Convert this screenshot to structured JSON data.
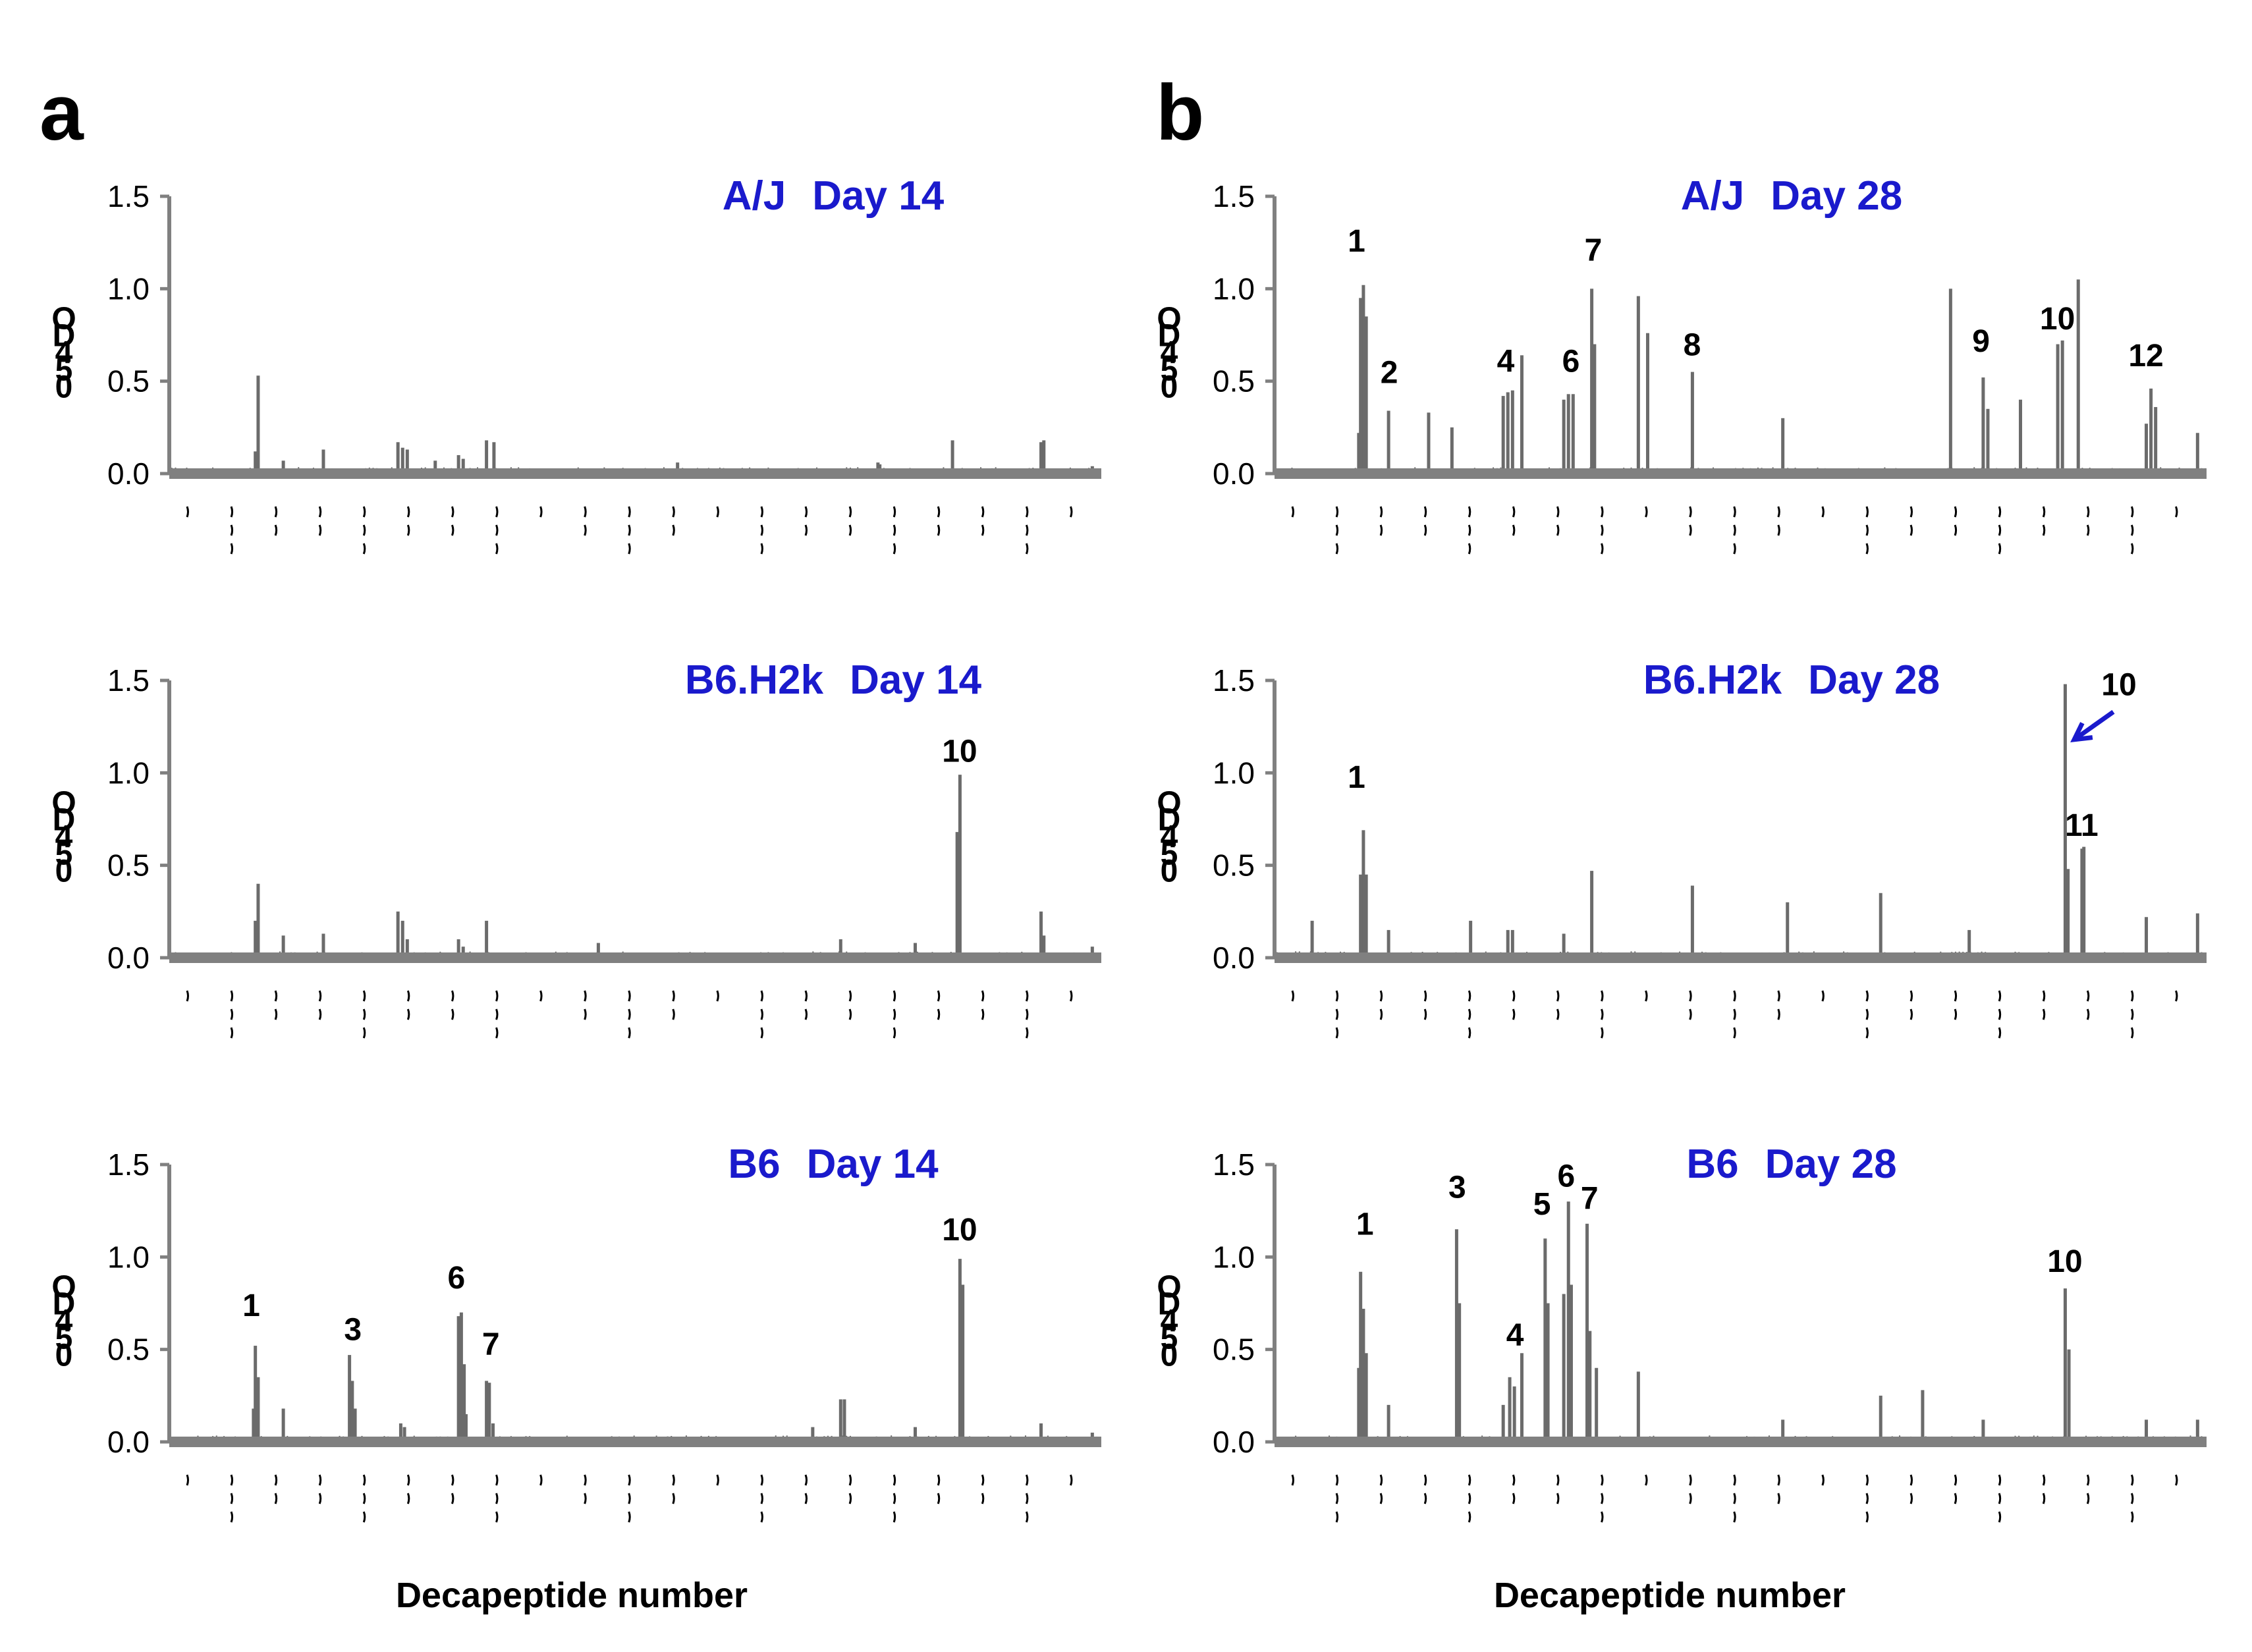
{
  "colors": {
    "title": "#1a1acc",
    "bar": "#6b6b6b",
    "axis": "#808080",
    "arrow": "#1a1acc",
    "text": "#000000"
  },
  "panels": [
    {
      "letter": "a",
      "xlabel": "Decapeptide number"
    },
    {
      "letter": "b",
      "xlabel": "Decapeptide number"
    }
  ],
  "chart_data": [
    {
      "type": "bar",
      "id": "aj-d14",
      "panel": "a",
      "row": 0,
      "title_strain": "A/J",
      "title_day": "Day 14",
      "ylabel": "OD 450",
      "ylabel_display": "OD 450",
      "ylim": [
        0,
        1.5
      ],
      "yticks": [
        "0.0",
        "0.5",
        "1.0",
        "1.5"
      ],
      "xlabel": "Decapeptide number",
      "xrange": [
        0,
        1000
      ],
      "bars": [
        [
          95,
          0.53
        ],
        [
          92,
          0.12
        ],
        [
          122,
          0.07
        ],
        [
          165,
          0.13
        ],
        [
          245,
          0.17
        ],
        [
          250,
          0.14
        ],
        [
          255,
          0.13
        ],
        [
          285,
          0.07
        ],
        [
          310,
          0.1
        ],
        [
          315,
          0.08
        ],
        [
          340,
          0.18
        ],
        [
          348,
          0.17
        ],
        [
          545,
          0.06
        ],
        [
          760,
          0.06
        ],
        [
          762,
          0.05
        ],
        [
          840,
          0.18
        ],
        [
          935,
          0.17
        ],
        [
          938,
          0.18
        ],
        [
          990,
          0.04
        ]
      ],
      "annotations": []
    },
    {
      "type": "bar",
      "id": "b6h2k-d14",
      "panel": "a",
      "row": 1,
      "title_strain": "B6.H2k",
      "title_day": "Day 14",
      "ylabel": "OD 450",
      "ylabel_display": "OD 450",
      "ylim": [
        0,
        1.5
      ],
      "yticks": [
        "0.0",
        "0.5",
        "1.0",
        "1.5"
      ],
      "xlabel": "Decapeptide number",
      "xrange": [
        0,
        1000
      ],
      "bars": [
        [
          95,
          0.4
        ],
        [
          92,
          0.2
        ],
        [
          122,
          0.12
        ],
        [
          165,
          0.13
        ],
        [
          245,
          0.25
        ],
        [
          250,
          0.2
        ],
        [
          255,
          0.1
        ],
        [
          310,
          0.1
        ],
        [
          315,
          0.06
        ],
        [
          340,
          0.2
        ],
        [
          460,
          0.08
        ],
        [
          720,
          0.1
        ],
        [
          800,
          0.08
        ],
        [
          848,
          0.99
        ],
        [
          845,
          0.68
        ],
        [
          935,
          0.25
        ],
        [
          938,
          0.12
        ],
        [
          990,
          0.06
        ]
      ],
      "annotations": [
        {
          "label": "10",
          "x": 848,
          "y": 1.06
        }
      ]
    },
    {
      "type": "bar",
      "id": "b6-d14",
      "panel": "a",
      "row": 2,
      "title_strain": "B6",
      "title_day": "Day 14",
      "ylabel": "OD 450",
      "ylabel_display": "OD 450",
      "ylim": [
        0,
        1.5
      ],
      "yticks": [
        "0.0",
        "0.5",
        "1.0",
        "1.5"
      ],
      "xlabel": "Decapeptide number",
      "xrange": [
        0,
        1000
      ],
      "bars": [
        [
          92,
          0.52
        ],
        [
          90,
          0.18
        ],
        [
          95,
          0.35
        ],
        [
          122,
          0.18
        ],
        [
          193,
          0.47
        ],
        [
          196,
          0.33
        ],
        [
          199,
          0.18
        ],
        [
          248,
          0.1
        ],
        [
          252,
          0.08
        ],
        [
          310,
          0.68
        ],
        [
          313,
          0.7
        ],
        [
          316,
          0.42
        ],
        [
          318,
          0.15
        ],
        [
          340,
          0.33
        ],
        [
          343,
          0.32
        ],
        [
          347,
          0.1
        ],
        [
          690,
          0.08
        ],
        [
          720,
          0.23
        ],
        [
          724,
          0.23
        ],
        [
          800,
          0.08
        ],
        [
          848,
          0.99
        ],
        [
          851,
          0.85
        ],
        [
          935,
          0.1
        ],
        [
          990,
          0.05
        ]
      ],
      "annotations": [
        {
          "label": "1",
          "x": 88,
          "y": 0.68
        },
        {
          "label": "3",
          "x": 197,
          "y": 0.55
        },
        {
          "label": "6",
          "x": 308,
          "y": 0.83
        },
        {
          "label": "7",
          "x": 345,
          "y": 0.47
        },
        {
          "label": "10",
          "x": 848,
          "y": 1.09
        }
      ]
    },
    {
      "type": "bar",
      "id": "aj-d28",
      "panel": "b",
      "row": 0,
      "title_strain": "A/J",
      "title_day": "Day 28",
      "ylabel": "OD 450",
      "ylabel_display": "OD 450",
      "ylim": [
        0,
        1.5
      ],
      "yticks": [
        "0.0",
        "0.5",
        "1.0",
        "1.5"
      ],
      "xlabel": "Decapeptide number",
      "xrange": [
        0,
        1000
      ],
      "bars": [
        [
          95,
          1.02
        ],
        [
          92,
          0.95
        ],
        [
          98,
          0.85
        ],
        [
          90,
          0.22
        ],
        [
          122,
          0.34
        ],
        [
          165,
          0.33
        ],
        [
          190,
          0.25
        ],
        [
          245,
          0.42
        ],
        [
          250,
          0.44
        ],
        [
          255,
          0.45
        ],
        [
          265,
          0.64
        ],
        [
          310,
          0.4
        ],
        [
          315,
          0.43
        ],
        [
          320,
          0.43
        ],
        [
          340,
          1.0
        ],
        [
          343,
          0.7
        ],
        [
          390,
          0.96
        ],
        [
          400,
          0.76
        ],
        [
          448,
          0.55
        ],
        [
          545,
          0.3
        ],
        [
          725,
          1.0
        ],
        [
          760,
          0.52
        ],
        [
          765,
          0.35
        ],
        [
          800,
          0.4
        ],
        [
          840,
          0.7
        ],
        [
          845,
          0.72
        ],
        [
          862,
          1.05
        ],
        [
          935,
          0.27
        ],
        [
          940,
          0.46
        ],
        [
          945,
          0.36
        ],
        [
          990,
          0.22
        ]
      ],
      "annotations": [
        {
          "label": "1",
          "x": 88,
          "y": 1.2
        },
        {
          "label": "2",
          "x": 123,
          "y": 0.49
        },
        {
          "label": "4",
          "x": 248,
          "y": 0.55
        },
        {
          "label": "6",
          "x": 318,
          "y": 0.55
        },
        {
          "label": "7",
          "x": 342,
          "y": 1.15
        },
        {
          "label": "8",
          "x": 448,
          "y": 0.64
        },
        {
          "label": "9",
          "x": 758,
          "y": 0.66
        },
        {
          "label": "10",
          "x": 840,
          "y": 0.78
        },
        {
          "label": "12",
          "x": 935,
          "y": 0.58
        }
      ]
    },
    {
      "type": "bar",
      "id": "b6h2k-d28",
      "panel": "b",
      "row": 1,
      "title_strain": "B6.H2k",
      "title_day": "Day 28",
      "ylabel": "OD 450",
      "ylabel_display": "OD 450",
      "ylim": [
        0,
        1.5
      ],
      "yticks": [
        "0.0",
        "0.5",
        "1.0",
        "1.5"
      ],
      "xlabel": "Decapeptide number",
      "xrange": [
        0,
        1000
      ],
      "bars": [
        [
          95,
          0.69
        ],
        [
          92,
          0.45
        ],
        [
          98,
          0.45
        ],
        [
          40,
          0.2
        ],
        [
          122,
          0.15
        ],
        [
          210,
          0.2
        ],
        [
          250,
          0.15
        ],
        [
          255,
          0.15
        ],
        [
          310,
          0.13
        ],
        [
          340,
          0.47
        ],
        [
          448,
          0.39
        ],
        [
          550,
          0.3
        ],
        [
          650,
          0.35
        ],
        [
          745,
          0.15
        ],
        [
          848,
          1.48
        ],
        [
          851,
          0.48
        ],
        [
          866,
          0.59
        ],
        [
          868,
          0.6
        ],
        [
          935,
          0.22
        ],
        [
          990,
          0.24
        ]
      ],
      "annotations": [
        {
          "label": "1",
          "x": 88,
          "y": 0.92
        },
        {
          "label": "10",
          "x": 906,
          "y": 1.42
        },
        {
          "label": "11",
          "x": 866,
          "y": 0.66
        }
      ],
      "arrow": {
        "x1": 900,
        "y1": 1.33,
        "x2": 858,
        "y2": 1.18
      }
    },
    {
      "type": "bar",
      "id": "b6-d28",
      "panel": "b",
      "row": 2,
      "title_strain": "B6",
      "title_day": "Day 28",
      "ylabel": "OD 450",
      "ylabel_display": "OD 450",
      "ylim": [
        0,
        1.5
      ],
      "yticks": [
        "0.0",
        "0.5",
        "1.0",
        "1.5"
      ],
      "xlabel": "Decapeptide number",
      "xrange": [
        0,
        1000
      ],
      "bars": [
        [
          92,
          0.92
        ],
        [
          95,
          0.72
        ],
        [
          90,
          0.4
        ],
        [
          98,
          0.48
        ],
        [
          122,
          0.2
        ],
        [
          195,
          1.15
        ],
        [
          198,
          0.75
        ],
        [
          245,
          0.2
        ],
        [
          252,
          0.35
        ],
        [
          257,
          0.3
        ],
        [
          265,
          0.48
        ],
        [
          290,
          1.1
        ],
        [
          293,
          0.75
        ],
        [
          310,
          0.8
        ],
        [
          315,
          1.3
        ],
        [
          318,
          0.85
        ],
        [
          335,
          1.18
        ],
        [
          338,
          0.6
        ],
        [
          345,
          0.4
        ],
        [
          390,
          0.38
        ],
        [
          545,
          0.12
        ],
        [
          650,
          0.25
        ],
        [
          695,
          0.28
        ],
        [
          760,
          0.12
        ],
        [
          848,
          0.83
        ],
        [
          852,
          0.5
        ],
        [
          935,
          0.12
        ],
        [
          990,
          0.12
        ]
      ],
      "annotations": [
        {
          "label": "1",
          "x": 97,
          "y": 1.12
        },
        {
          "label": "3",
          "x": 196,
          "y": 1.32
        },
        {
          "label": "4",
          "x": 258,
          "y": 0.52
        },
        {
          "label": "5",
          "x": 287,
          "y": 1.23
        },
        {
          "label": "6",
          "x": 313,
          "y": 1.38
        },
        {
          "label": "7",
          "x": 338,
          "y": 1.26
        },
        {
          "label": "10",
          "x": 848,
          "y": 0.92
        }
      ]
    }
  ]
}
